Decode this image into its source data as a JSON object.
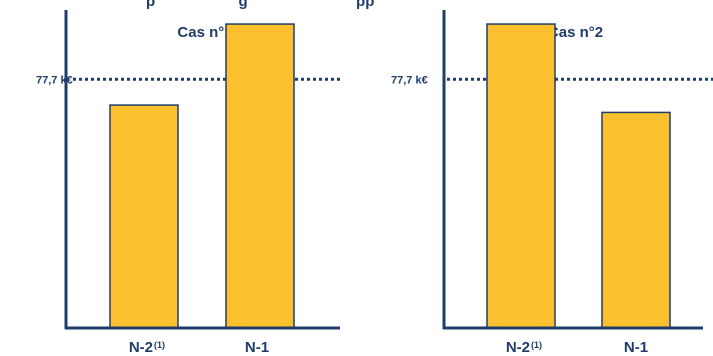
{
  "heading_fragment": "p                    g                          pp",
  "colors": {
    "bar": "#fbc02d",
    "bar_edge": "#1f3d6b",
    "axis": "#1f3d6b",
    "text": "#1f3d6b"
  },
  "chart_data": [
    {
      "type": "bar",
      "title": "Cas n°1",
      "categories": [
        "N-2",
        "N-1"
      ],
      "category_footnotes": [
        "(1)",
        ""
      ],
      "values": [
        60,
        82
      ],
      "ylim": [
        0,
        85
      ],
      "reference_line": {
        "value": 67,
        "label": "77,7 k€",
        "style": "dotted"
      },
      "grid": false
    },
    {
      "type": "bar",
      "title": "Cas n°2",
      "categories": [
        "N-2",
        "N-1"
      ],
      "category_footnotes": [
        "(1)",
        ""
      ],
      "values": [
        82,
        58
      ],
      "ylim": [
        0,
        85
      ],
      "reference_line": {
        "value": 67,
        "label": "77,7 k€",
        "style": "dotted"
      },
      "grid": false
    }
  ]
}
